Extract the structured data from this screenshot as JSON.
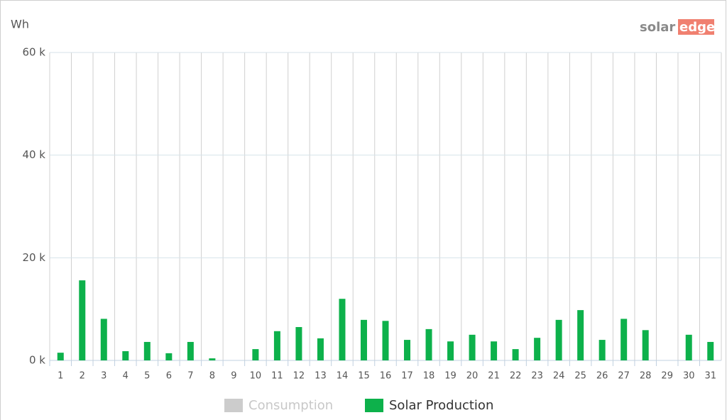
{
  "chart_data": {
    "type": "bar",
    "y_axis_label": "Wh",
    "logo": {
      "left": "solar",
      "right": "edge"
    },
    "categories": [
      "1",
      "2",
      "3",
      "4",
      "5",
      "6",
      "7",
      "8",
      "9",
      "10",
      "11",
      "12",
      "13",
      "14",
      "15",
      "16",
      "17",
      "18",
      "19",
      "20",
      "21",
      "22",
      "23",
      "24",
      "25",
      "26",
      "27",
      "28",
      "29",
      "30",
      "31"
    ],
    "series": [
      {
        "name": "Consumption",
        "color": "#cccccc",
        "visible": false,
        "values": [
          null,
          null,
          null,
          null,
          null,
          null,
          null,
          null,
          null,
          null,
          null,
          null,
          null,
          null,
          null,
          null,
          null,
          null,
          null,
          null,
          null,
          null,
          null,
          null,
          null,
          null,
          null,
          null,
          null,
          null,
          null
        ]
      },
      {
        "name": "Solar Production",
        "color": "#0db14b",
        "visible": true,
        "values": [
          1500,
          15600,
          8100,
          1800,
          3600,
          1400,
          3600,
          400,
          0,
          2200,
          5700,
          6500,
          4300,
          12000,
          7900,
          7700,
          4000,
          6100,
          3700,
          5000,
          3700,
          2200,
          4400,
          7900,
          9800,
          4000,
          8100,
          5900,
          0,
          5000,
          3600
        ]
      }
    ],
    "ylim": [
      0,
      60000
    ],
    "yticks": [
      {
        "value": 0,
        "label": "0 k"
      },
      {
        "value": 20000,
        "label": "20 k"
      },
      {
        "value": 40000,
        "label": "40 k"
      },
      {
        "value": 60000,
        "label": "60 k"
      }
    ],
    "grid": true
  }
}
